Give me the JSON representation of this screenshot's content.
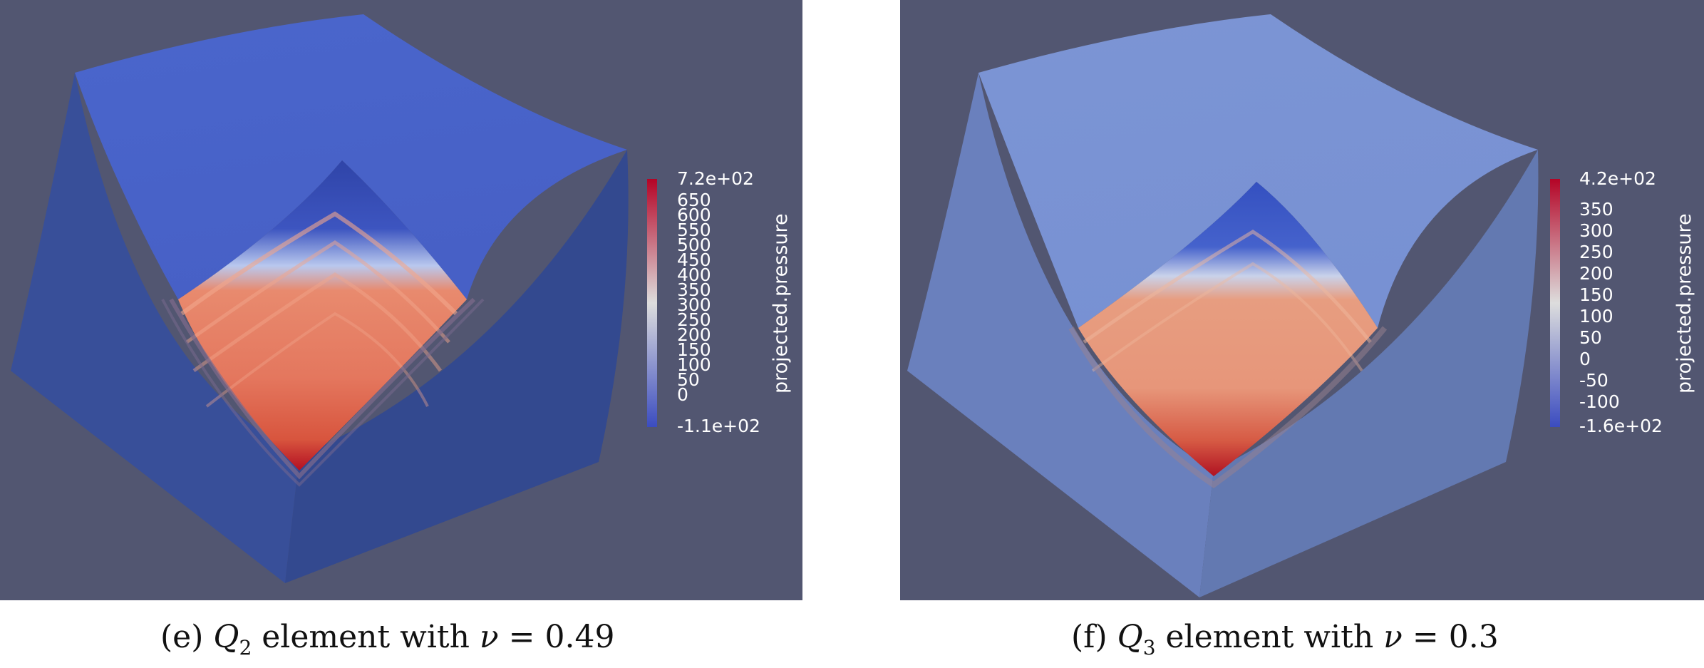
{
  "panels": [
    {
      "id": "e",
      "colorbar": {
        "title": "projected.pressure",
        "max_label": "7.2e+02",
        "min_label": "-1.1e+02",
        "ticks": [
          "650",
          "600",
          "550",
          "500",
          "450",
          "400",
          "350",
          "300",
          "250",
          "200",
          "150",
          "100",
          "50",
          "0"
        ],
        "range": [
          -110,
          720
        ]
      },
      "caption": {
        "prefix": "(e) ",
        "symbol": "Q",
        "subscript": "2",
        "text": " element with ",
        "nu_symbol": "ν",
        "equals": " = 0.49"
      }
    },
    {
      "id": "f",
      "colorbar": {
        "title": "projected.pressure",
        "max_label": "4.2e+02",
        "min_label": "-1.6e+02",
        "ticks": [
          "350",
          "300",
          "250",
          "200",
          "150",
          "100",
          "50",
          "0",
          "-50",
          "-100"
        ],
        "range": [
          -160,
          420
        ]
      },
      "caption": {
        "prefix": "(f) ",
        "symbol": "Q",
        "subscript": "3",
        "text": " element with ",
        "nu_symbol": "ν",
        "equals": " = 0.3"
      }
    }
  ],
  "colors": {
    "background": "#525671",
    "min_color": "#3b4cc0",
    "mid_color": "#dddddd",
    "max_color": "#b40426"
  }
}
